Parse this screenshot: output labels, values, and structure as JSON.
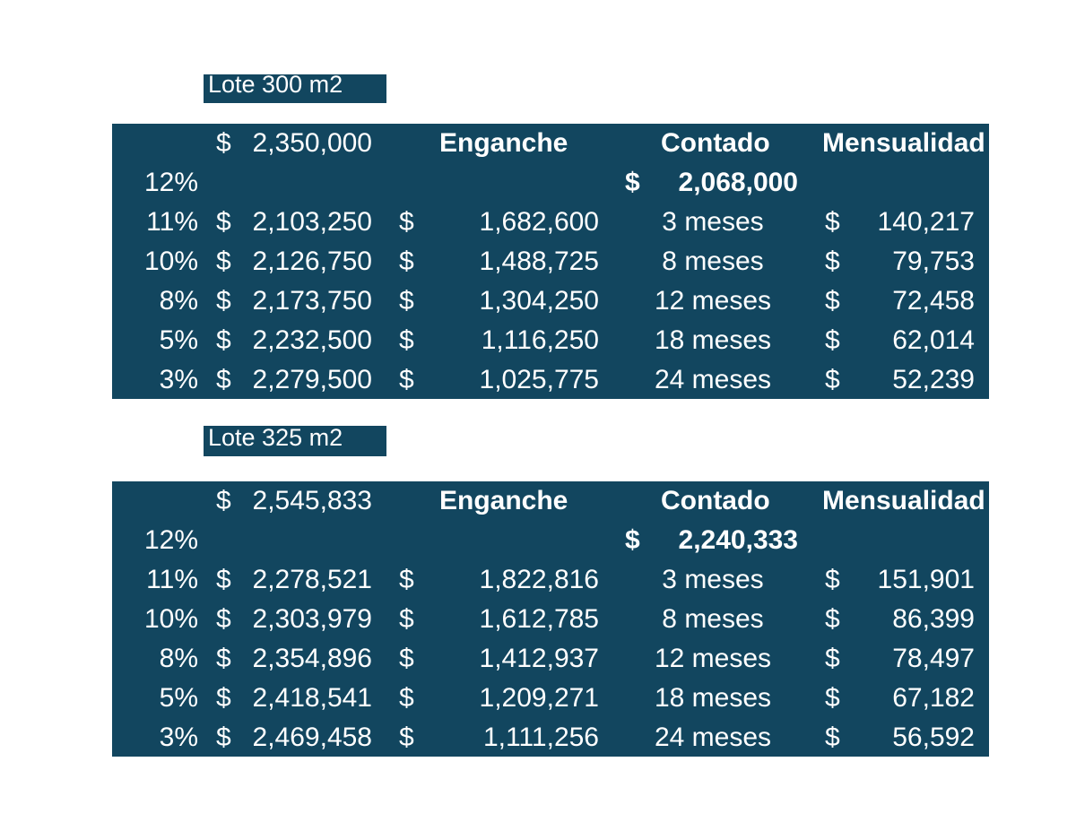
{
  "lots": [
    {
      "label": "Lote 300 m2",
      "base_price_symbol": "$",
      "base_price": "2,350,000",
      "headers": {
        "enganche": "Enganche",
        "contado": "Contado",
        "mensualidad": "Mensualidad"
      },
      "cash_row": {
        "pct": "12%",
        "symbol": "$",
        "value": "2,068,000"
      },
      "rows": [
        {
          "pct": "11%",
          "price": "2,103,250",
          "enganche": "1,682,600",
          "term": "3 meses",
          "monthly": "140,217"
        },
        {
          "pct": "10%",
          "price": "2,126,750",
          "enganche": "1,488,725",
          "term": "8 meses",
          "monthly": "79,753"
        },
        {
          "pct": "8%",
          "price": "2,173,750",
          "enganche": "1,304,250",
          "term": "12 meses",
          "monthly": "72,458"
        },
        {
          "pct": "5%",
          "price": "2,232,500",
          "enganche": "1,116,250",
          "term": "18 meses",
          "monthly": "62,014"
        },
        {
          "pct": "3%",
          "price": "2,279,500",
          "enganche": "1,025,775",
          "term": "24 meses",
          "monthly": "52,239"
        }
      ]
    },
    {
      "label": "Lote 325 m2",
      "base_price_symbol": "$",
      "base_price": "2,545,833",
      "headers": {
        "enganche": "Enganche",
        "contado": "Contado",
        "mensualidad": "Mensualidad"
      },
      "cash_row": {
        "pct": "12%",
        "symbol": "$",
        "value": "2,240,333"
      },
      "rows": [
        {
          "pct": "11%",
          "price": "2,278,521",
          "enganche": "1,822,816",
          "term": "3 meses",
          "monthly": "151,901"
        },
        {
          "pct": "10%",
          "price": "2,303,979",
          "enganche": "1,612,785",
          "term": "8 meses",
          "monthly": "86,399"
        },
        {
          "pct": "8%",
          "price": "2,354,896",
          "enganche": "1,412,937",
          "term": "12 meses",
          "monthly": "78,497"
        },
        {
          "pct": "5%",
          "price": "2,418,541",
          "enganche": "1,209,271",
          "term": "18 meses",
          "monthly": "67,182"
        },
        {
          "pct": "3%",
          "price": "2,469,458",
          "enganche": "1,111,256",
          "term": "24 meses",
          "monthly": "56,592"
        }
      ]
    }
  ],
  "currency_symbol": "$",
  "colors": {
    "table_bg": "#12465f",
    "text": "#ffffff",
    "page_bg": "#ffffff"
  }
}
